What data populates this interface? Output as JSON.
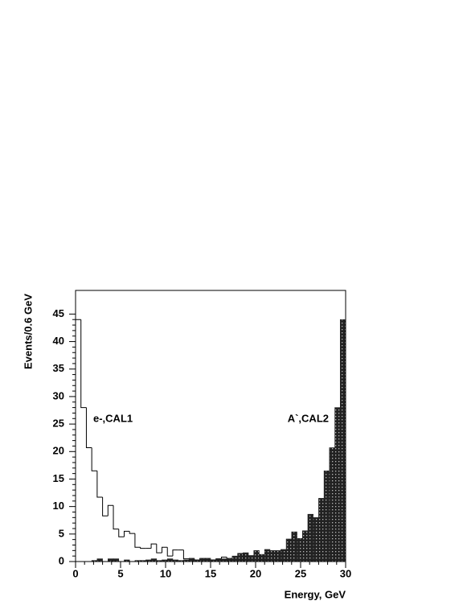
{
  "chart_data": {
    "type": "histogram",
    "xlabel": "Energy, GeV",
    "ylabel": "Events/0.6 GeV",
    "annotations": [
      "e-,CAL1",
      "A`,CAL2"
    ],
    "bins": [
      0,
      0.6,
      1.2,
      1.8,
      2.4,
      3,
      3.6,
      4.2,
      4.8,
      5.4,
      6,
      6.6,
      7.2,
      7.8,
      8.4,
      9,
      9.6,
      10.2,
      10.8,
      11.4,
      12,
      12.6,
      13.2,
      13.8,
      14.4,
      15,
      15.6,
      16.2,
      16.8,
      17.4,
      18,
      18.6,
      19.2,
      19.8,
      20.4,
      21,
      21.6,
      22.2,
      22.8,
      23.4,
      24,
      24.6,
      25.2,
      25.8,
      26.4,
      27,
      27.6,
      28.2,
      28.8,
      29.4,
      30
    ],
    "series": [
      {
        "color": "#000000",
        "filled": false,
        "values": [
          44,
          28,
          20.7,
          16.5,
          11.7,
          8.3,
          10.2,
          5.9,
          4.5,
          5.5,
          5.1,
          2.6,
          2.4,
          2.4,
          3.2,
          1.6,
          2.6,
          1.0,
          2.1,
          2.1,
          0.5,
          0.5,
          0.3,
          0.5,
          0.3,
          0.3,
          0.5,
          0.8,
          0.3,
          0.3,
          0,
          0,
          0,
          0,
          0,
          0,
          0,
          0,
          0,
          0,
          0,
          0,
          0,
          0,
          0,
          0,
          0,
          0,
          0,
          0
        ]
      },
      {
        "color": "#222222",
        "filled": true,
        "values": [
          0,
          0,
          0,
          0.2,
          0.5,
          0,
          0.5,
          0.5,
          0,
          0.3,
          0,
          0.2,
          0.2,
          0.3,
          0.5,
          0.2,
          0.3,
          0.5,
          0.3,
          0.2,
          0.3,
          0.6,
          0.3,
          0.6,
          0.6,
          0.3,
          0.5,
          0.5,
          0.6,
          1.0,
          1.5,
          1.6,
          1.1,
          2.0,
          1.3,
          2.2,
          2.0,
          2.0,
          2.2,
          4.1,
          5.4,
          4.2,
          5.6,
          8.6,
          8.0,
          11.5,
          16.5,
          20.7,
          28,
          44
        ]
      }
    ],
    "xlim": [
      0,
      30
    ],
    "xticks": [
      0,
      5,
      10,
      15,
      20,
      25,
      30
    ],
    "ylim": [
      0,
      49.3
    ],
    "yticks": [
      0,
      5,
      10,
      15,
      20,
      25,
      30,
      35,
      40,
      45
    ]
  }
}
